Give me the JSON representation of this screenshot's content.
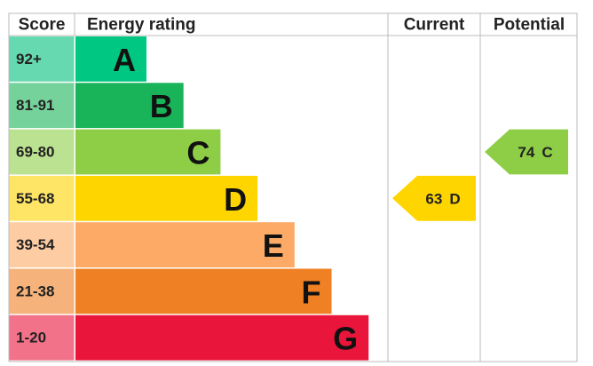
{
  "header": {
    "score": "Score",
    "rating": "Energy rating",
    "current": "Current",
    "potential": "Potential"
  },
  "bands": [
    {
      "score": "92+",
      "letter": "A",
      "color": "#00c781",
      "tint": "#66d9b0"
    },
    {
      "score": "81-91",
      "letter": "B",
      "color": "#19b459",
      "tint": "#75d29b"
    },
    {
      "score": "69-80",
      "letter": "C",
      "color": "#8dce46",
      "tint": "#bbe290"
    },
    {
      "score": "55-68",
      "letter": "D",
      "color": "#ffd500",
      "tint": "#ffe566"
    },
    {
      "score": "39-54",
      "letter": "E",
      "color": "#fcaa65",
      "tint": "#fdcca3"
    },
    {
      "score": "21-38",
      "letter": "F",
      "color": "#ef8023",
      "tint": "#f5b37b"
    },
    {
      "score": "1-20",
      "letter": "G",
      "color": "#e9153b",
      "tint": "#f27389"
    }
  ],
  "current": {
    "value": 63,
    "rating": "D"
  },
  "potential": {
    "value": 74,
    "rating": "C"
  }
}
